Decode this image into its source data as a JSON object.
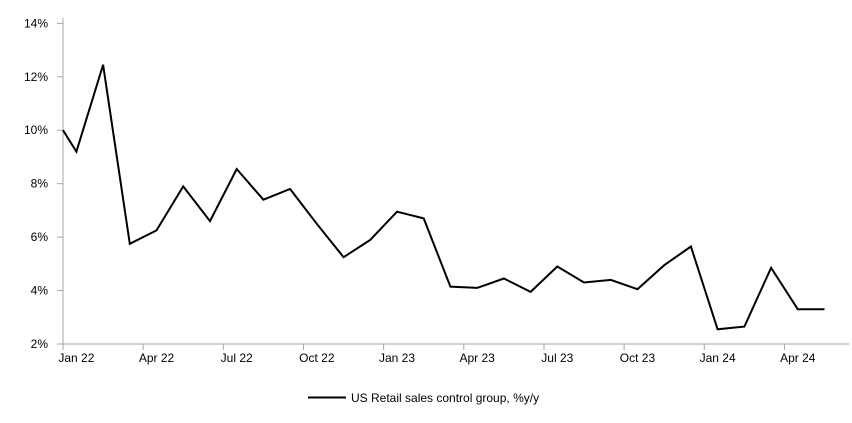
{
  "chart": {
    "title": "",
    "colors": {
      "line": "#000000",
      "axis": "#a6a6a6",
      "text": "#000000",
      "background": "#ffffff"
    }
  },
  "chart_data": {
    "type": "line",
    "title": "",
    "xlabel": "",
    "ylabel": "",
    "grid": false,
    "legend_position": "bottom",
    "ylim": [
      2,
      14
    ],
    "yticks": [
      {
        "value": 2,
        "label": "2%"
      },
      {
        "value": 4,
        "label": "4%"
      },
      {
        "value": 6,
        "label": "6%"
      },
      {
        "value": 8,
        "label": "8%"
      },
      {
        "value": 10,
        "label": "10%"
      },
      {
        "value": 12,
        "label": "12%"
      },
      {
        "value": 14,
        "label": "14%"
      }
    ],
    "xticks": [
      {
        "month_index": 0,
        "label": "Jan 22"
      },
      {
        "month_index": 3,
        "label": "Apr 22"
      },
      {
        "month_index": 6,
        "label": "Jul 22"
      },
      {
        "month_index": 9,
        "label": "Oct 22"
      },
      {
        "month_index": 12,
        "label": "Jan 23"
      },
      {
        "month_index": 15,
        "label": "Apr 23"
      },
      {
        "month_index": 18,
        "label": "Jul 23"
      },
      {
        "month_index": 21,
        "label": "Oct 23"
      },
      {
        "month_index": 24,
        "label": "Jan 24"
      },
      {
        "month_index": 27,
        "label": "Apr 24"
      }
    ],
    "x": [
      "Jan 22",
      "Feb 22",
      "Mar 22",
      "Apr 22",
      "May 22",
      "Jun 22",
      "Jul 22",
      "Aug 22",
      "Sep 22",
      "Oct 22",
      "Nov 22",
      "Dec 22",
      "Jan 23",
      "Feb 23",
      "Mar 23",
      "Apr 23",
      "May 23",
      "Jun 23",
      "Jul 23",
      "Aug 23",
      "Sep 23",
      "Oct 23",
      "Nov 23",
      "Dec 23",
      "Jan 24",
      "Feb 24",
      "Mar 24",
      "Apr 24",
      "May 24"
    ],
    "line_starts_at_left_axis_value": 10.0,
    "series": [
      {
        "name": "US Retail sales control group, %y/y",
        "color": "#000000",
        "values": [
          9.2,
          12.45,
          5.75,
          6.25,
          7.9,
          6.6,
          8.55,
          7.4,
          7.8,
          6.5,
          5.25,
          5.9,
          6.95,
          6.7,
          4.15,
          4.1,
          4.45,
          3.95,
          4.9,
          4.3,
          4.4,
          4.05,
          4.95,
          5.65,
          2.55,
          2.65,
          4.85,
          3.3,
          3.3
        ]
      }
    ]
  }
}
